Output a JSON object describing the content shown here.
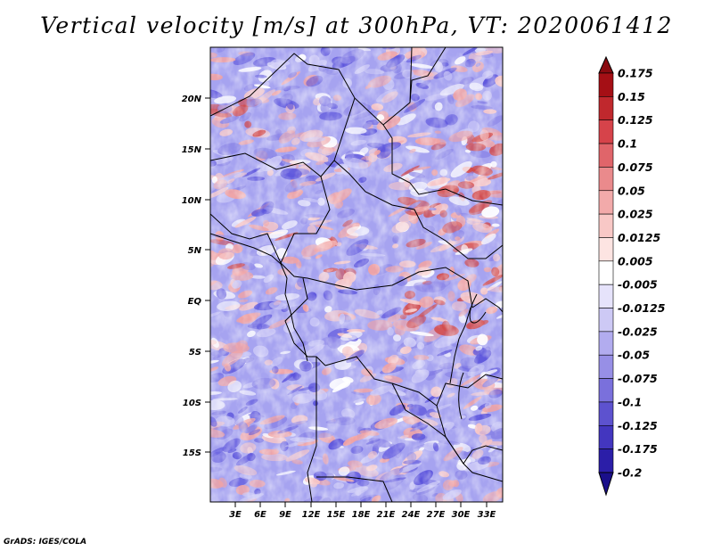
{
  "title": "Vertical velocity [m/s] at 300hPa, VT: 2020061412",
  "credit": "GrADS: IGES/COLA",
  "map": {
    "lat_labels": [
      "20N",
      "15N",
      "10N",
      "5N",
      "EQ",
      "5S",
      "10S",
      "15S"
    ],
    "lon_labels": [
      "3E",
      "6E",
      "9E",
      "12E",
      "15E",
      "18E",
      "21E",
      "24E",
      "27E",
      "30E",
      "33E"
    ]
  },
  "colorbar": {
    "labels": [
      "0.175",
      "0.15",
      "0.125",
      "0.1",
      "0.075",
      "0.05",
      "0.025",
      "0.0125",
      "0.005",
      "-0.005",
      "-0.0125",
      "-0.025",
      "-0.05",
      "-0.075",
      "-0.1",
      "-0.125",
      "-0.175",
      "-0.2"
    ],
    "colors": [
      "#a50f15",
      "#c0282d",
      "#d6434a",
      "#e0656a",
      "#ea8a8c",
      "#f2aaaa",
      "#f8c8c6",
      "#fde4e2",
      "#ffffff",
      "#e6e3fb",
      "#cdc9f5",
      "#b2acef",
      "#978fe6",
      "#7a70dc",
      "#5d52cf",
      "#4336bf",
      "#2b1ea8"
    ],
    "end_low": "#1a0f8a",
    "end_high": "#8a0a10"
  },
  "colors": {
    "base_blue": "#a6a3f0",
    "red_strong": "#d24848",
    "red_light": "#f1a3a3",
    "blue_strong": "#5a52db"
  }
}
